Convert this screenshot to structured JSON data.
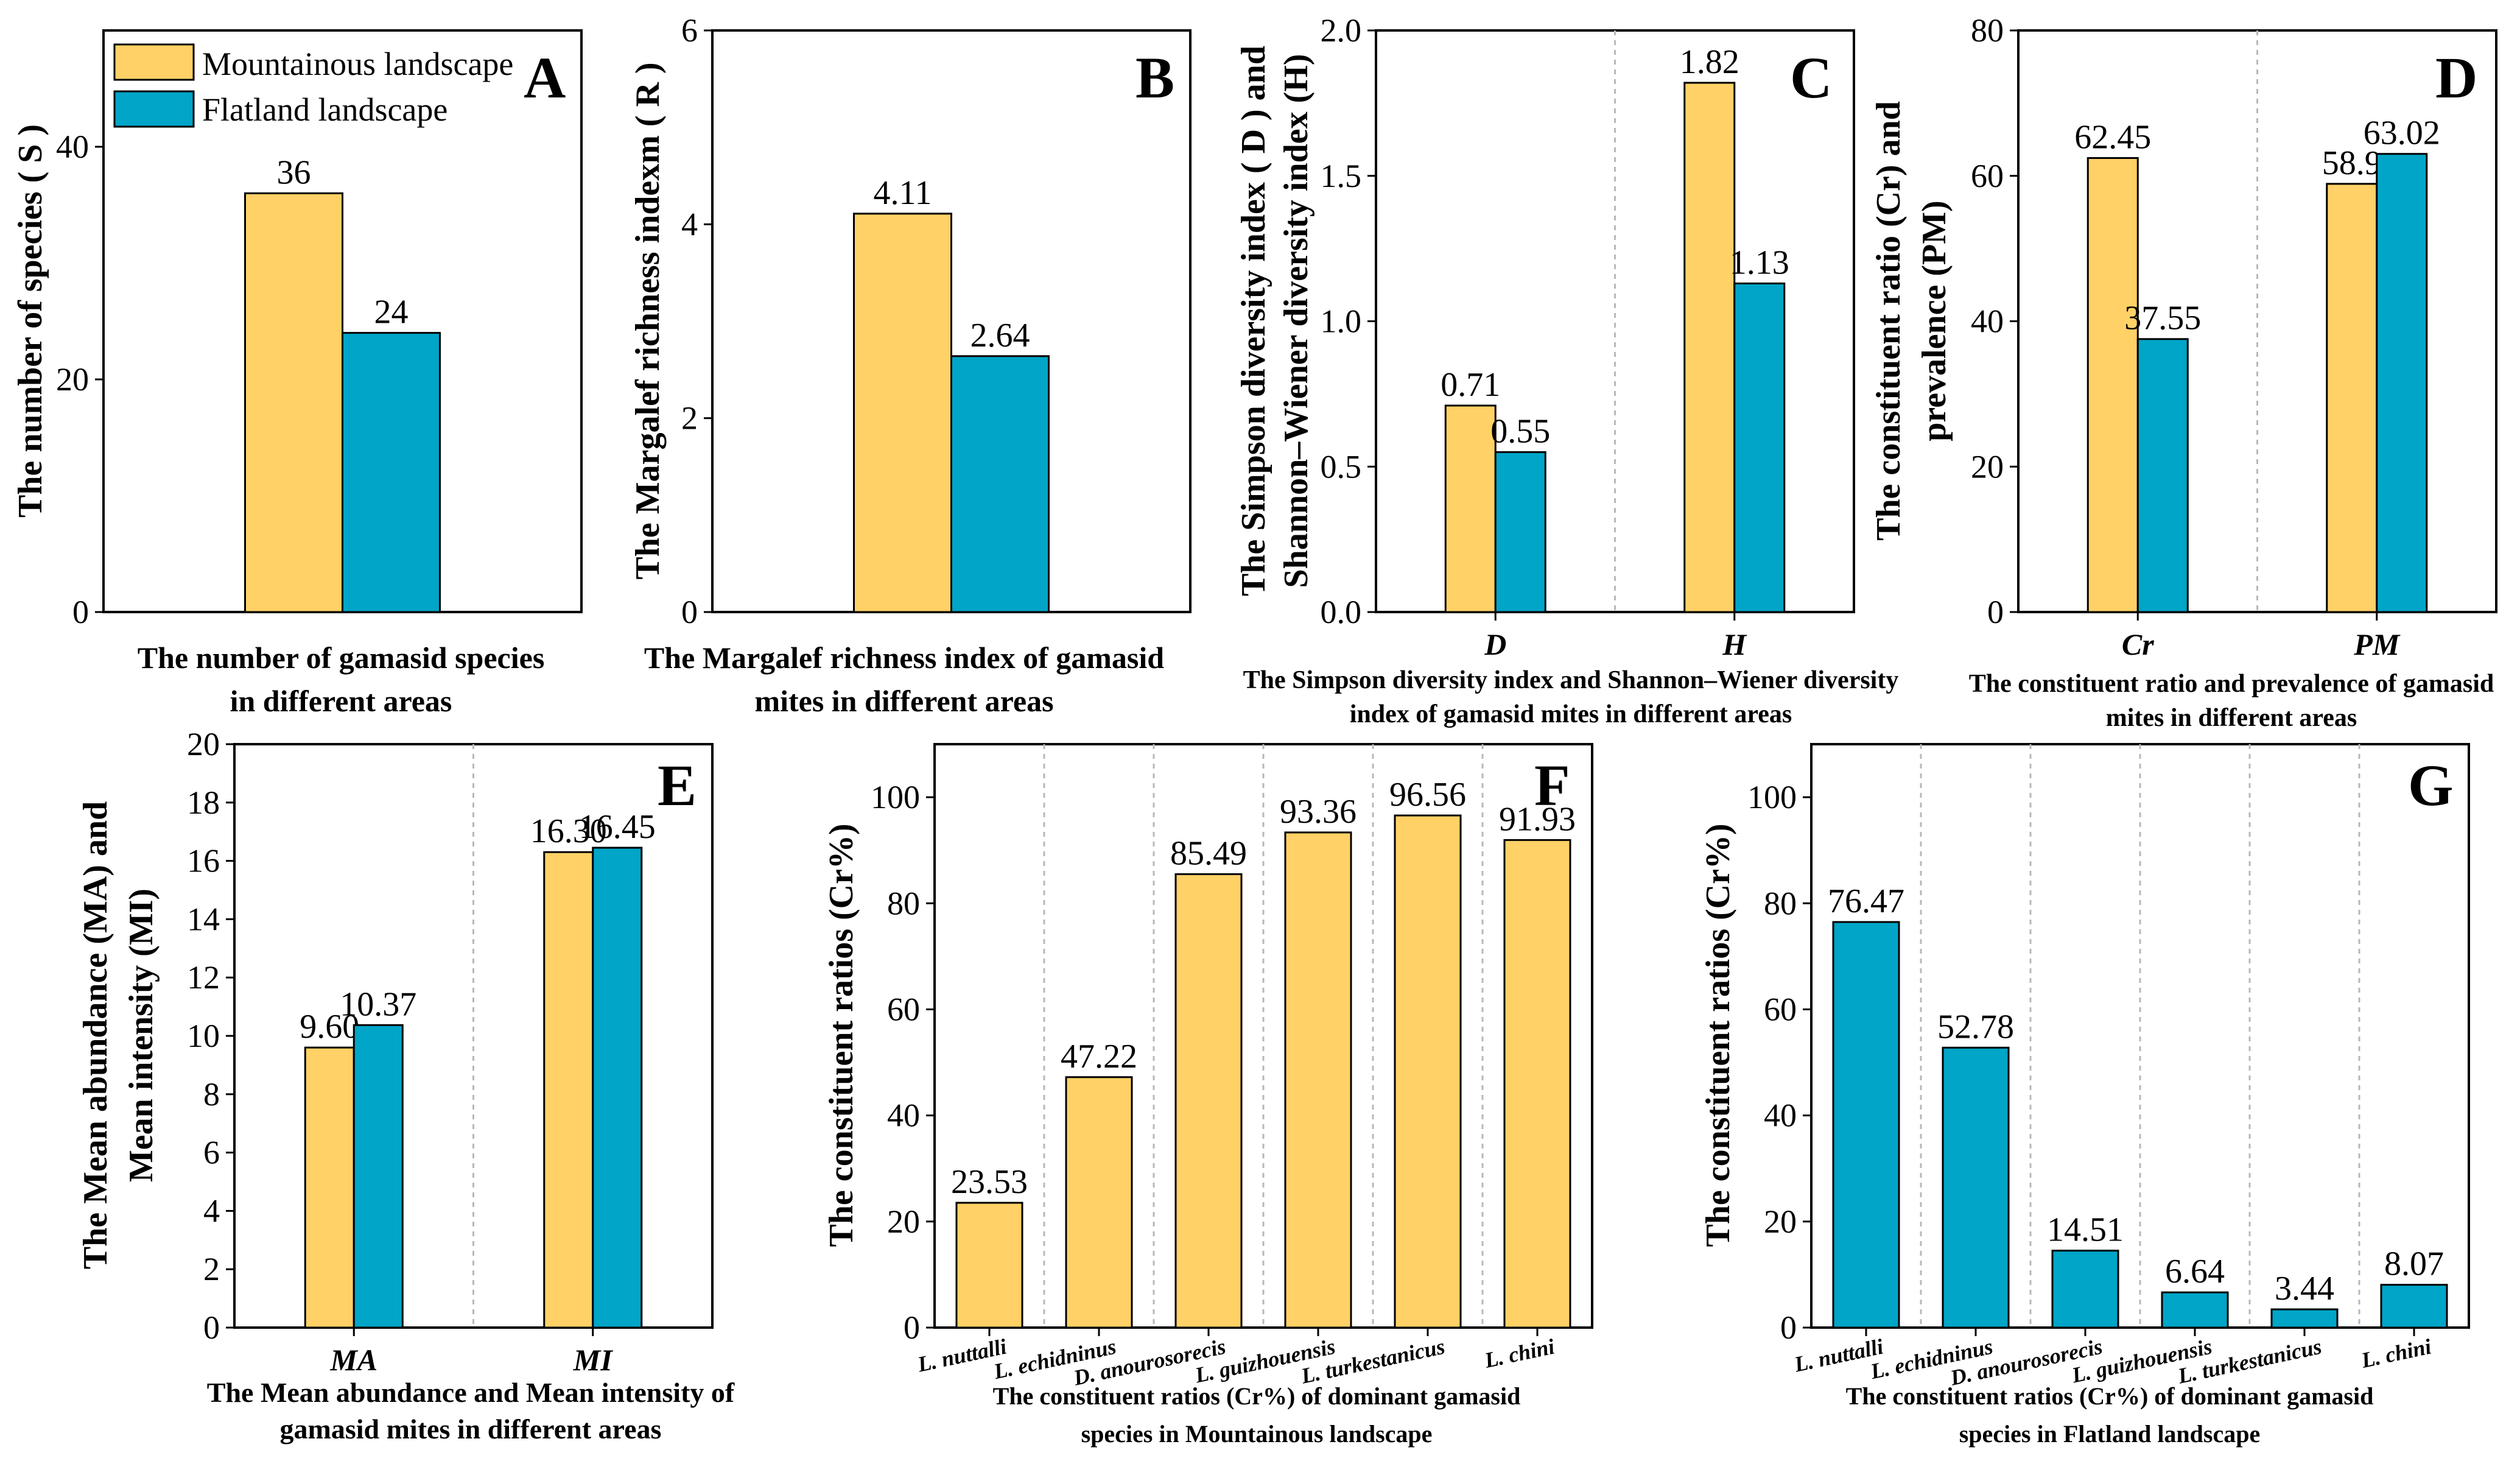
{
  "colors": {
    "mountain": "#FFD166",
    "flat": "#00A5C7",
    "axis": "#000000",
    "separator": "#b8b8b8"
  },
  "legend": {
    "items": [
      {
        "label": "Mountainous landscape",
        "color": "#FFD166"
      },
      {
        "label": "Flatland landscape",
        "color": "#00A5C7"
      }
    ]
  },
  "chart_data": [
    {
      "id": "A",
      "type": "bar",
      "panel_label": "A",
      "ylabel": "The number of species ( S )",
      "xtitle": [
        "The number of gamasid species",
        "in different areas"
      ],
      "ylim": [
        0,
        50
      ],
      "yticks": [
        0,
        20,
        40
      ],
      "categories": [
        ""
      ],
      "series": [
        {
          "name": "Mountainous landscape",
          "values": [
            36
          ],
          "labels": [
            "36"
          ]
        },
        {
          "name": "Flatland landscape",
          "values": [
            24
          ],
          "labels": [
            "24"
          ]
        }
      ]
    },
    {
      "id": "B",
      "type": "bar",
      "panel_label": "B",
      "ylabel": "The Margalef richness indexm ( R )",
      "xtitle": [
        "The Margalef richness index of gamasid",
        "mites in different areas"
      ],
      "ylim": [
        0,
        6
      ],
      "yticks": [
        0,
        2,
        4,
        6
      ],
      "categories": [
        ""
      ],
      "series": [
        {
          "name": "Mountainous landscape",
          "values": [
            4.11
          ],
          "labels": [
            "4.11"
          ]
        },
        {
          "name": "Flatland landscape",
          "values": [
            2.64
          ],
          "labels": [
            "2.64"
          ]
        }
      ]
    },
    {
      "id": "C",
      "type": "bar",
      "panel_label": "C",
      "ylabel": [
        "The Simpson diversity index ( D ) and",
        "Shannon–Wiener diversity index (H)"
      ],
      "xtitle": [
        "The Simpson diversity index and Shannon–Wiener diversity",
        "index of gamasid mites in different areas"
      ],
      "ylim": [
        0,
        2.0
      ],
      "yticks": [
        0.0,
        0.5,
        1.0,
        1.5,
        2.0
      ],
      "categories": [
        "D",
        "H"
      ],
      "series": [
        {
          "name": "Mountainous landscape",
          "values": [
            0.71,
            1.82
          ],
          "labels": [
            "0.71",
            "1.82"
          ]
        },
        {
          "name": "Flatland landscape",
          "values": [
            0.55,
            1.13
          ],
          "labels": [
            "0.55",
            "1.13"
          ]
        }
      ]
    },
    {
      "id": "D",
      "type": "bar",
      "panel_label": "D",
      "ylabel": [
        "The constituent ratio (Cr) and",
        "prevalence (PM)"
      ],
      "xtitle": [
        "The constituent ratio and prevalence of gamasid",
        "mites in different areas"
      ],
      "ylim": [
        0,
        80
      ],
      "yticks": [
        0,
        20,
        40,
        60,
        80
      ],
      "categories": [
        "Cr",
        "PM"
      ],
      "series": [
        {
          "name": "Mountainous landscape",
          "values": [
            62.45,
            58.9
          ],
          "labels": [
            "62.45",
            "58.9"
          ]
        },
        {
          "name": "Flatland landscape",
          "values": [
            37.55,
            63.02
          ],
          "labels": [
            "37.55",
            "63.02"
          ]
        }
      ]
    },
    {
      "id": "E",
      "type": "bar",
      "panel_label": "E",
      "ylabel": [
        "The Mean abundance (MA) and",
        "Mean intensity (MI)"
      ],
      "xtitle": [
        "The Mean abundance and Mean intensity of",
        "gamasid mites in different areas"
      ],
      "ylim": [
        0,
        20
      ],
      "yticks": [
        0,
        2,
        4,
        6,
        8,
        10,
        12,
        14,
        16,
        18,
        20
      ],
      "categories": [
        "MA",
        "MI"
      ],
      "series": [
        {
          "name": "Mountainous landscape",
          "values": [
            9.6,
            16.3
          ],
          "labels": [
            "9.60",
            "16.30"
          ]
        },
        {
          "name": "Flatland landscape",
          "values": [
            10.37,
            16.45
          ],
          "labels": [
            "10.37",
            "16.45"
          ]
        }
      ]
    },
    {
      "id": "F",
      "type": "bar",
      "panel_label": "F",
      "ylabel": "The constituent ratios (Cr%)",
      "xtitle": [
        "The constituent ratios (Cr%) of dominant gamasid",
        "species in Mountainous landscape"
      ],
      "ylim": [
        0,
        110
      ],
      "yticks": [
        0,
        20,
        40,
        60,
        80,
        100
      ],
      "categories": [
        "L. nuttalli",
        "L. echidninus",
        "D. anourosorecis",
        "L. guizhouensis",
        "L. turkestanicus",
        "L. chini"
      ],
      "series": [
        {
          "name": "Mountainous landscape",
          "values": [
            23.53,
            47.22,
            85.49,
            93.36,
            96.56,
            91.93
          ],
          "labels": [
            "23.53",
            "47.22",
            "85.49",
            "93.36",
            "96.56",
            "91.93"
          ]
        }
      ]
    },
    {
      "id": "G",
      "type": "bar",
      "panel_label": "G",
      "ylabel": "The constituent ratios (Cr%)",
      "xtitle": [
        "The constituent ratios (Cr%) of dominant gamasid",
        "species in Flatland landscape"
      ],
      "ylim": [
        0,
        110
      ],
      "yticks": [
        0,
        20,
        40,
        60,
        80,
        100
      ],
      "categories": [
        "L. nuttalli",
        "L. echidninus",
        "D. anourosorecis",
        "L. guizhouensis",
        "L. turkestanicus",
        "L. chini"
      ],
      "series": [
        {
          "name": "Flatland landscape",
          "values": [
            76.47,
            52.78,
            14.51,
            6.64,
            3.44,
            8.07
          ],
          "labels": [
            "76.47",
            "52.78",
            "14.51",
            "6.64",
            "3.44",
            "8.07"
          ]
        }
      ]
    }
  ]
}
